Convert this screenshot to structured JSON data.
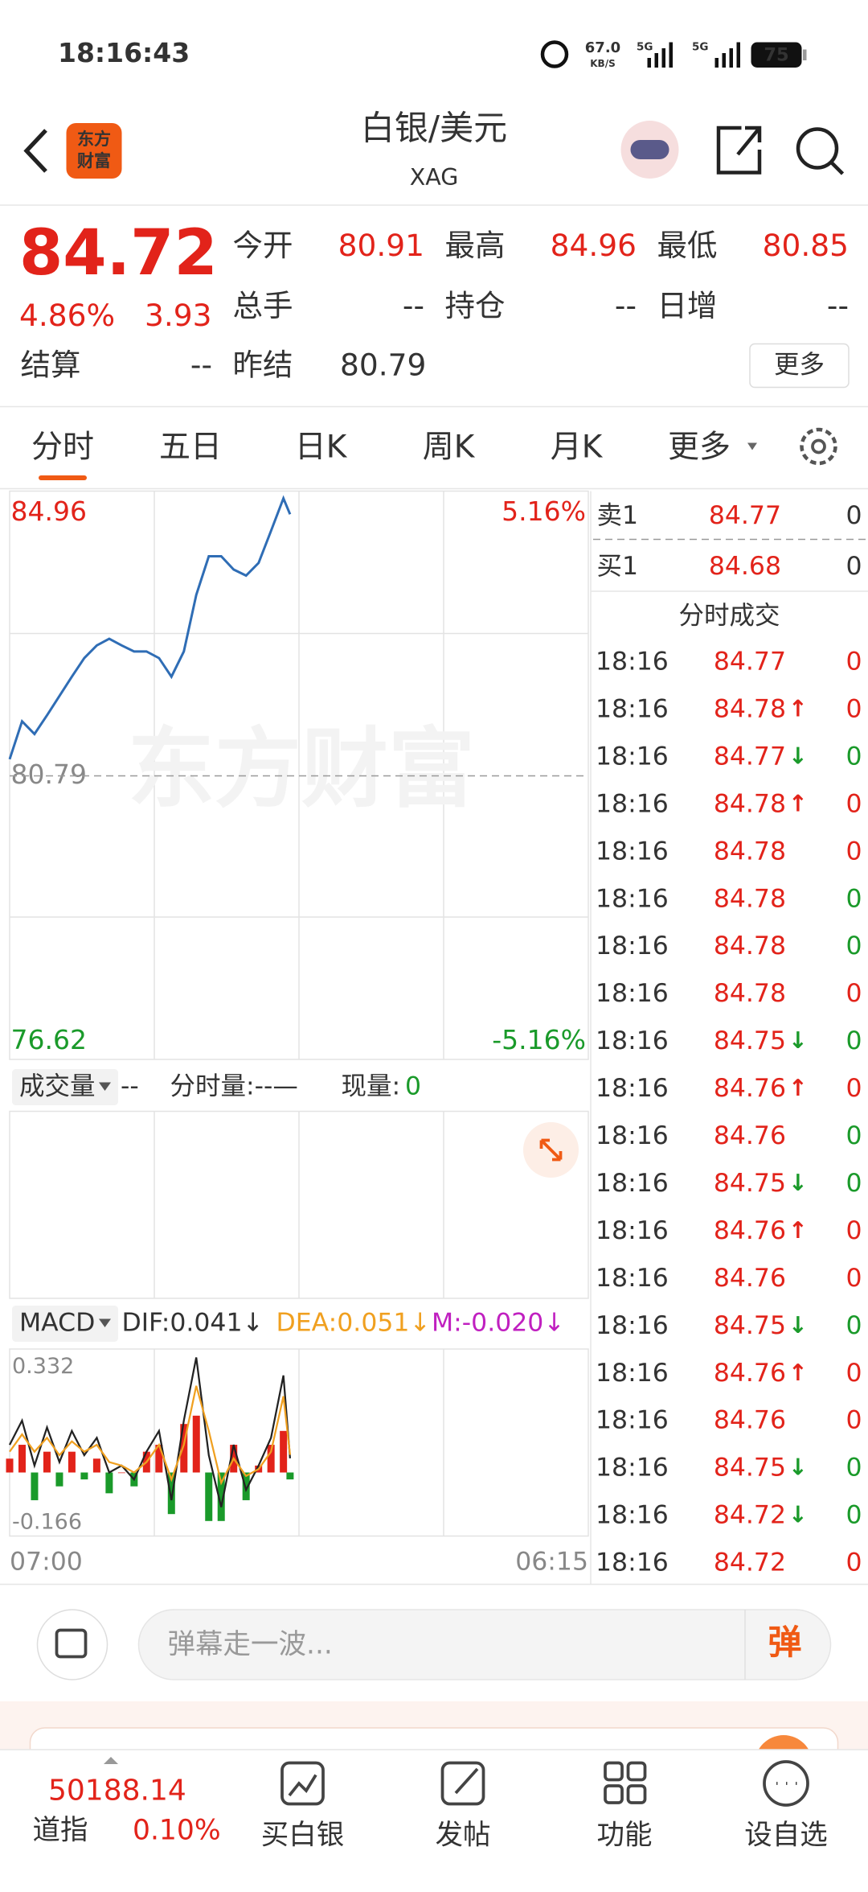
{
  "status_bar": {
    "time": "18:16:43",
    "speed": "67.0",
    "speed_unit": "KB/S",
    "network": "5G",
    "battery": "75"
  },
  "header": {
    "logo": [
      "东方",
      "财富"
    ],
    "title": "白银/美元",
    "code": "XAG"
  },
  "quote": {
    "price": "84.72",
    "change_pct": "4.86%",
    "change": "3.93",
    "fields": [
      {
        "label": "今开",
        "value": "80.91"
      },
      {
        "label": "最高",
        "value": "84.96"
      },
      {
        "label": "最低",
        "value": "80.85"
      },
      {
        "label": "总手",
        "value": "--"
      },
      {
        "label": "持仓",
        "value": "--"
      },
      {
        "label": "日增",
        "value": "--"
      },
      {
        "label": "结算",
        "value": "--"
      },
      {
        "label": "昨结",
        "value": "80.79"
      }
    ],
    "more": "更多"
  },
  "tabs": [
    "分时",
    "五日",
    "日K",
    "周K",
    "月K",
    "更多"
  ],
  "watermark": "东方财富",
  "chart_data": [
    {
      "type": "line",
      "color": "#2f6db5",
      "x": [
        "07:00",
        "07:30",
        "08:00",
        "08:30",
        "09:00",
        "09:30",
        "10:00",
        "10:30",
        "11:00",
        "11:30",
        "12:00",
        "12:30",
        "13:00",
        "13:30",
        "14:00",
        "14:30",
        "15:00",
        "15:30",
        "16:00",
        "16:30",
        "17:00",
        "17:30",
        "18:00",
        "18:16"
      ],
      "values": [
        81.04,
        81.61,
        81.42,
        81.7,
        81.99,
        82.28,
        82.56,
        82.75,
        82.85,
        82.75,
        82.66,
        82.66,
        82.56,
        82.28,
        82.66,
        83.51,
        84.09,
        84.09,
        83.89,
        83.8,
        83.99,
        84.47,
        84.96,
        84.72
      ],
      "xlim": [
        "07:00",
        "06:15"
      ],
      "ylim": [
        76.62,
        84.96
      ],
      "yticks": [
        84.96,
        80.79,
        76.62
      ],
      "y2lim": [
        -5.16,
        5.16
      ],
      "y2ticks": [
        {
          "value": 5.16,
          "label": "5.16%"
        },
        {
          "value": -5.16,
          "label": "-5.16%"
        }
      ]
    },
    {
      "type": "macd",
      "selector": "MACD",
      "x": [
        "07:00",
        "07:30",
        "08:00",
        "08:30",
        "09:00",
        "09:30",
        "10:00",
        "10:30",
        "11:00",
        "11:30",
        "12:00",
        "12:30",
        "13:00",
        "13:30",
        "14:00",
        "14:30",
        "15:00",
        "15:30",
        "16:00",
        "16:30",
        "17:00",
        "17:30",
        "18:00",
        "18:16"
      ],
      "xlim": [
        "07:00",
        "06:15"
      ],
      "ylim": [
        -0.166,
        0.332
      ],
      "yticks": [
        0.332,
        -0.166
      ],
      "series": [
        {
          "legend": "DIF:0.041↓",
          "color": "#222222",
          "values": [
            0.08,
            0.15,
            0.02,
            0.13,
            0.03,
            0.12,
            0.05,
            0.1,
            0.0,
            0.02,
            -0.02,
            0.06,
            0.12,
            -0.08,
            0.15,
            0.332,
            0.05,
            -0.1,
            0.08,
            -0.05,
            0.02,
            0.1,
            0.28,
            0.041
          ]
        },
        {
          "legend": "DEA:0.051↓",
          "color": "#f0a020",
          "values": [
            0.06,
            0.11,
            0.06,
            0.1,
            0.05,
            0.09,
            0.06,
            0.08,
            0.03,
            0.02,
            0.0,
            0.03,
            0.08,
            -0.02,
            0.08,
            0.25,
            0.12,
            -0.03,
            0.04,
            -0.01,
            0.01,
            0.06,
            0.22,
            0.051
          ]
        },
        {
          "legend": "M:-0.020↓",
          "color": "#c020c0",
          "up_color": "#e2231a",
          "down_color": "#1a9a2a",
          "values": [
            0.04,
            0.08,
            -0.08,
            0.06,
            -0.04,
            0.06,
            -0.02,
            0.04,
            -0.06,
            0.0,
            -0.04,
            0.06,
            0.08,
            -0.12,
            0.14,
            0.164,
            -0.14,
            -0.14,
            0.08,
            -0.08,
            0.02,
            0.08,
            0.12,
            -0.02
          ]
        }
      ]
    }
  ],
  "volume_panel": {
    "selector": "成交量",
    "value": "--",
    "label": "分时量:--—",
    "current_label": "现量:",
    "current_value": "0"
  },
  "order_book": [
    {
      "label": "卖1",
      "price": "84.77",
      "volume": "0"
    },
    {
      "label": "买1",
      "price": "84.68",
      "volume": "0"
    }
  ],
  "trades": {
    "title": "分时成交",
    "rows": [
      {
        "time": "18:16",
        "price": "84.77",
        "volume": "0",
        "volume_color": "#e2231a"
      },
      {
        "time": "18:16",
        "price": "84.78",
        "arrow": "↑",
        "volume": "0",
        "volume_color": "#e2231a"
      },
      {
        "time": "18:16",
        "price": "84.77",
        "arrow": "↓",
        "volume": "0",
        "volume_color": "#1a9a2a"
      },
      {
        "time": "18:16",
        "price": "84.78",
        "arrow": "↑",
        "volume": "0",
        "volume_color": "#e2231a"
      },
      {
        "time": "18:16",
        "price": "84.78",
        "volume": "0",
        "volume_color": "#e2231a"
      },
      {
        "time": "18:16",
        "price": "84.78",
        "volume": "0",
        "volume_color": "#1a9a2a"
      },
      {
        "time": "18:16",
        "price": "84.78",
        "volume": "0",
        "volume_color": "#1a9a2a"
      },
      {
        "time": "18:16",
        "price": "84.78",
        "volume": "0",
        "volume_color": "#e2231a"
      },
      {
        "time": "18:16",
        "price": "84.75",
        "arrow": "↓",
        "volume": "0",
        "volume_color": "#1a9a2a"
      },
      {
        "time": "18:16",
        "price": "84.76",
        "arrow": "↑",
        "volume": "0",
        "volume_color": "#e2231a"
      },
      {
        "time": "18:16",
        "price": "84.76",
        "volume": "0",
        "volume_color": "#1a9a2a"
      },
      {
        "time": "18:16",
        "price": "84.75",
        "arrow": "↓",
        "volume": "0",
        "volume_color": "#1a9a2a"
      },
      {
        "time": "18:16",
        "price": "84.76",
        "arrow": "↑",
        "volume": "0",
        "volume_color": "#e2231a"
      },
      {
        "time": "18:16",
        "price": "84.76",
        "volume": "0",
        "volume_color": "#e2231a"
      },
      {
        "time": "18:16",
        "price": "84.75",
        "arrow": "↓",
        "volume": "0",
        "volume_color": "#1a9a2a"
      },
      {
        "time": "18:16",
        "price": "84.76",
        "arrow": "↑",
        "volume": "0",
        "volume_color": "#e2231a"
      },
      {
        "time": "18:16",
        "price": "84.76",
        "volume": "0",
        "volume_color": "#e2231a"
      },
      {
        "time": "18:16",
        "price": "84.75",
        "arrow": "↓",
        "volume": "0",
        "volume_color": "#1a9a2a"
      },
      {
        "time": "18:16",
        "price": "84.72",
        "arrow": "↓",
        "volume": "0",
        "volume_color": "#1a9a2a"
      },
      {
        "time": "18:16",
        "price": "84.72",
        "volume": "0",
        "volume_color": "#e2231a"
      }
    ]
  },
  "comment": {
    "placeholder": "弹幕走一波...",
    "button": "弹"
  },
  "bottom_nav": {
    "index": {
      "name": "道指",
      "value": "50188.14",
      "change": "0.10%"
    },
    "items": [
      "买白银",
      "发帖",
      "功能",
      "设自选"
    ]
  }
}
